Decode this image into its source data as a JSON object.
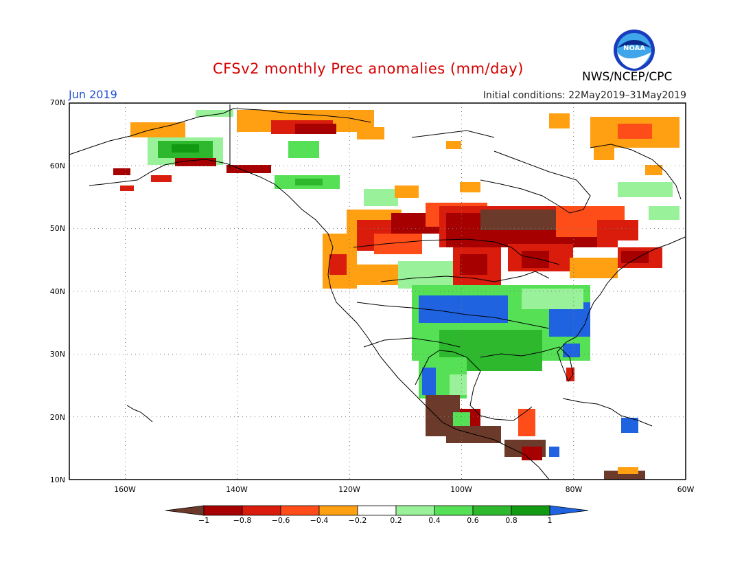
{
  "header": {
    "title": "CFSv2 monthly Prec anomalies (mm/day)",
    "agency": "NWS/NCEP/CPC",
    "logo_text": "NOAA",
    "month": "Jun 2019",
    "initial_conditions": "Initial conditions: 22May2019–31May2019"
  },
  "axes": {
    "lat_labels": [
      "70N",
      "60N",
      "50N",
      "40N",
      "30N",
      "20N",
      "10N"
    ],
    "lon_labels": [
      "160W",
      "140W",
      "120W",
      "100W",
      "80W",
      "60W"
    ],
    "lon_range": [
      -170,
      -60
    ],
    "lat_range": [
      10,
      70
    ]
  },
  "colorbar": {
    "labels": [
      "−1",
      "−0.8",
      "−0.6",
      "−0.4",
      "−0.2",
      "0.2",
      "0.4",
      "0.6",
      "0.8",
      "1"
    ],
    "colors": [
      "#6b3a2a",
      "#a60000",
      "#d91c0c",
      "#ff4d1a",
      "#ff9f12",
      "#ffffff",
      "#99f29a",
      "#55e055",
      "#2eb82e",
      "#129a12",
      "#1f63e0"
    ]
  }
}
